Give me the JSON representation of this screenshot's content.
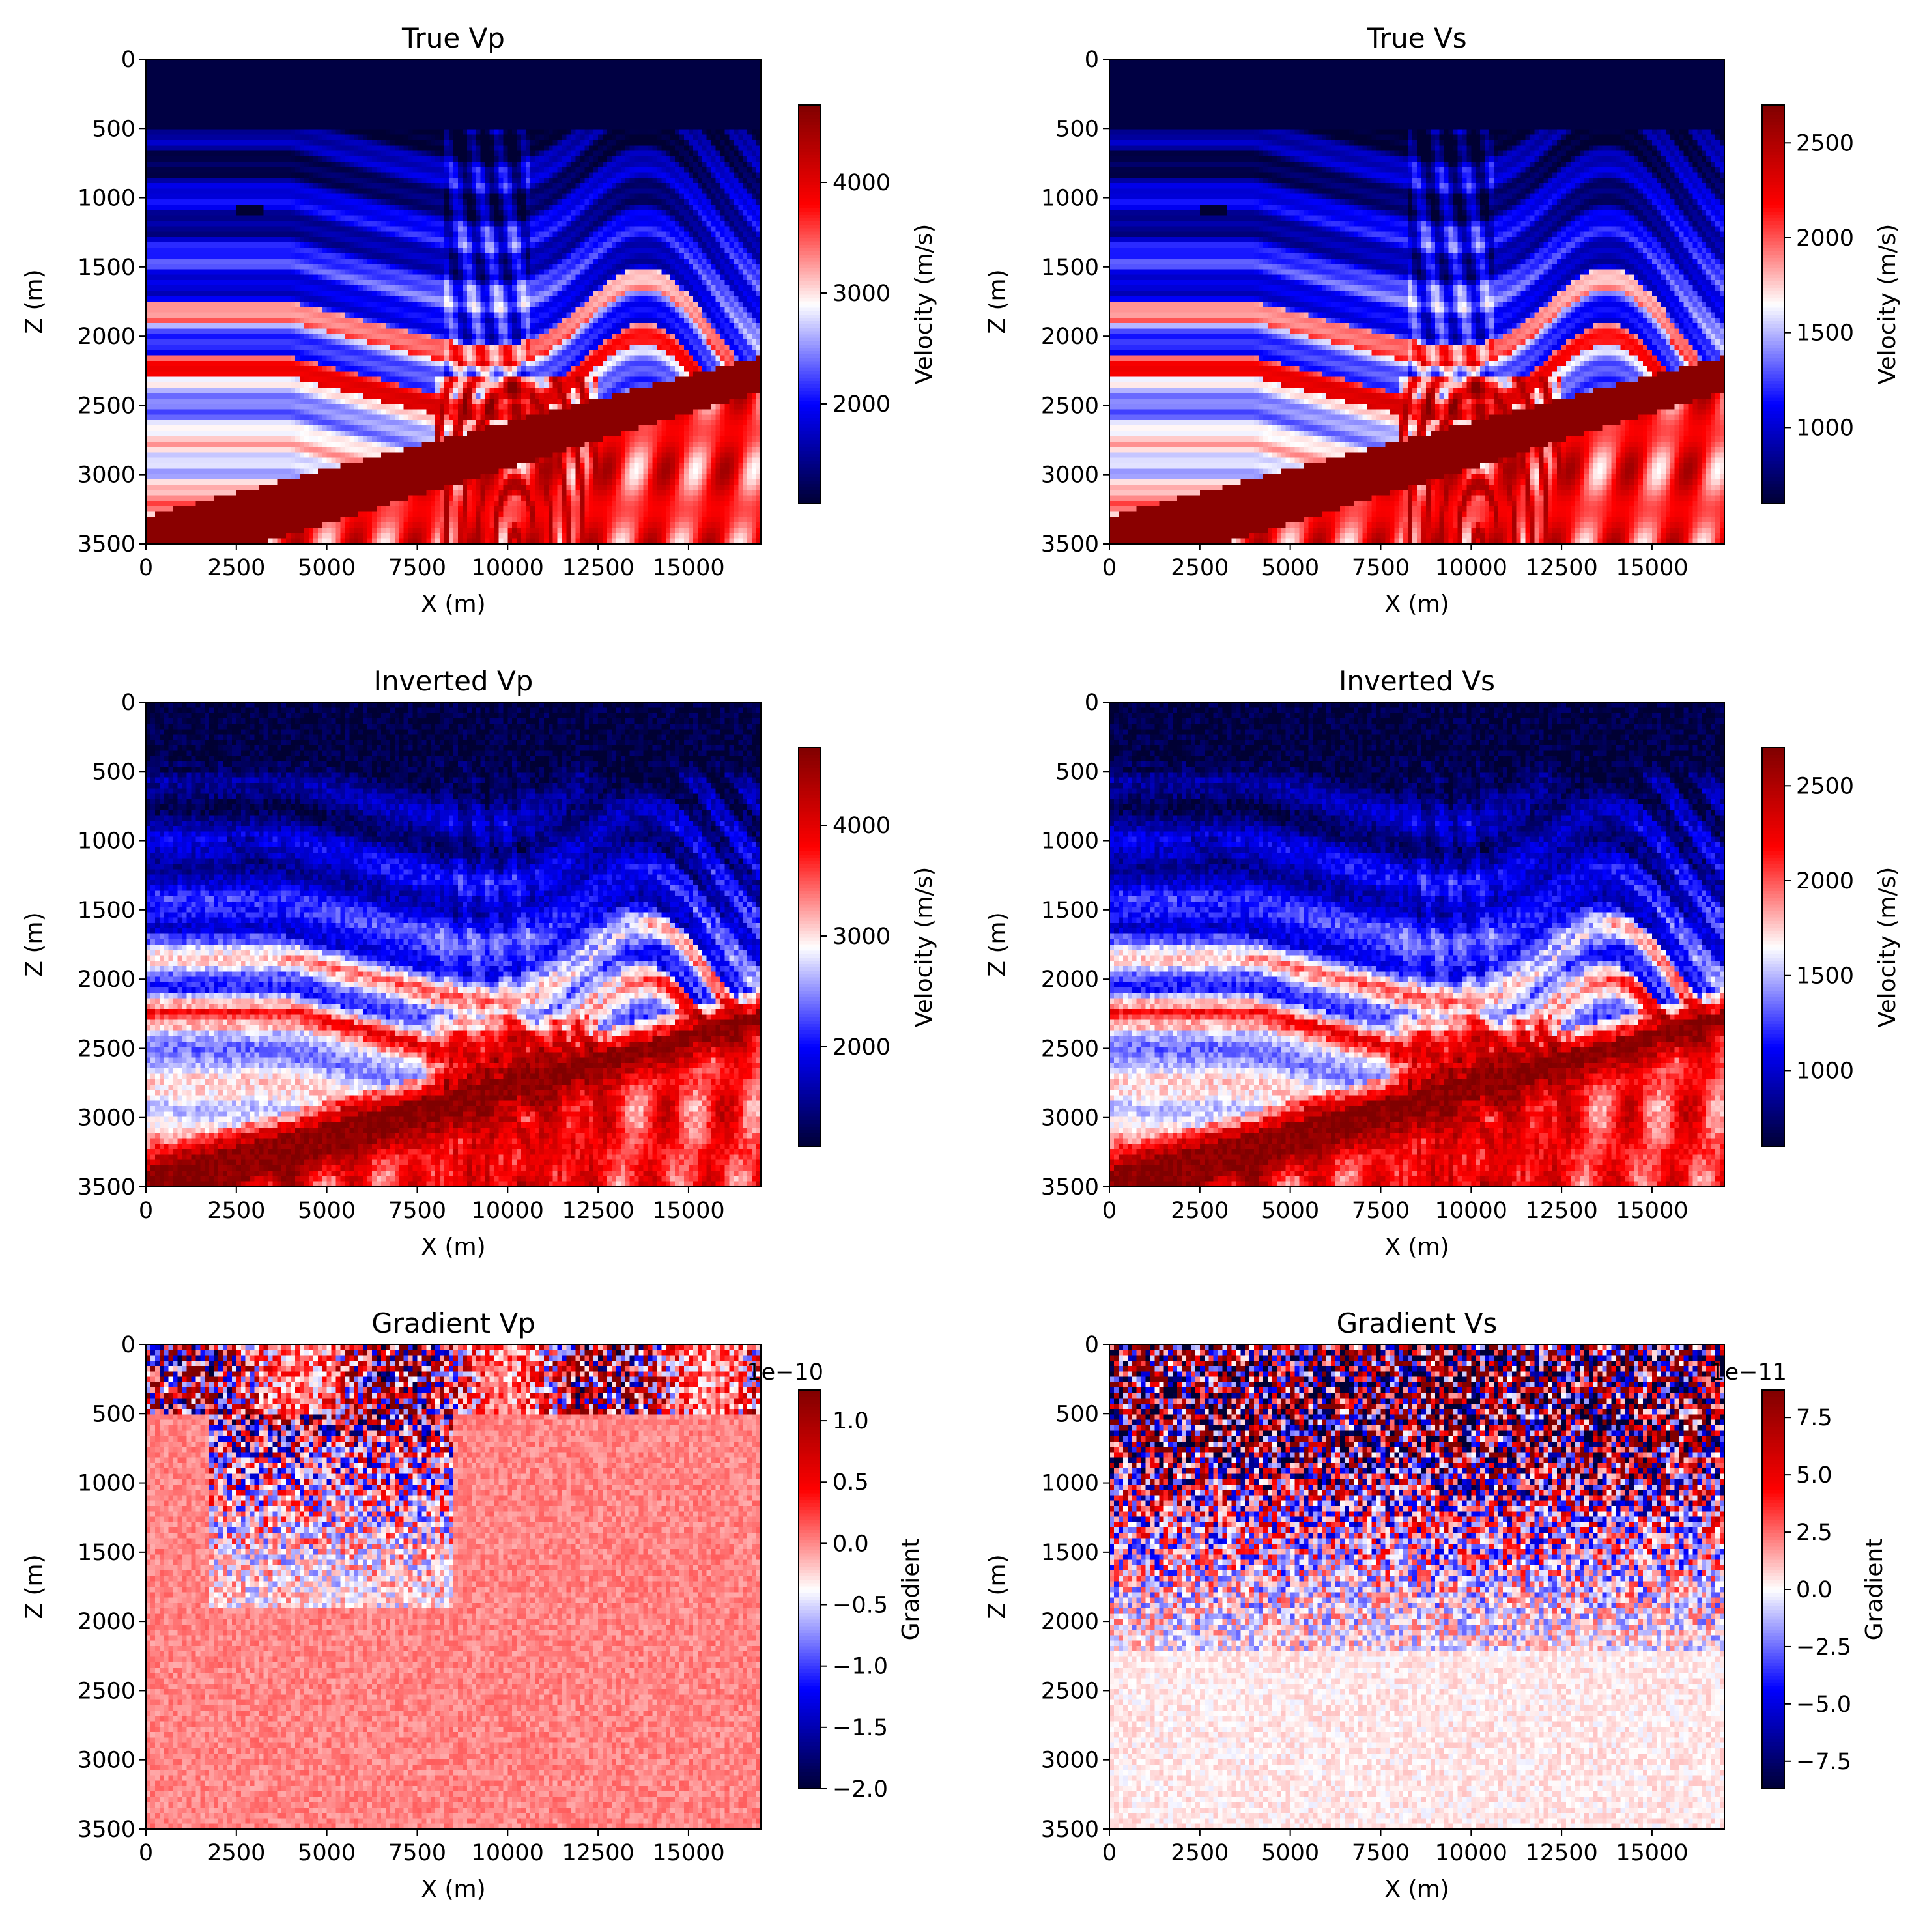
{
  "figure": {
    "rows": 3,
    "cols": 2
  },
  "colormap": {
    "name": "seismic",
    "stops": [
      "#000033",
      "#0000ff",
      "#ffffff",
      "#ff0000",
      "#800000"
    ]
  },
  "chart_data": [
    {
      "type": "heatmap",
      "title": "True Vp",
      "xlabel": "X (m)",
      "ylabel": "Z (m)",
      "xlim": [
        0,
        17000
      ],
      "ylim": [
        3500,
        0
      ],
      "xticks": [
        0,
        2500,
        5000,
        7500,
        10000,
        12500,
        15000
      ],
      "xtick_labels": [
        "0",
        "2500",
        "5000",
        "7500",
        "10000",
        "12500",
        "15000"
      ],
      "yticks": [
        0,
        500,
        1000,
        1500,
        2000,
        2500,
        3000,
        3500
      ],
      "ytick_labels": [
        "0",
        "500",
        "1000",
        "1500",
        "2000",
        "2500",
        "3000",
        "3500"
      ],
      "colorbar": {
        "label": "Velocity (m/s)",
        "range": [
          1100,
          4700
        ],
        "ticks": [
          2000,
          3000,
          4000
        ],
        "tick_labels": [
          "2000",
          "3000",
          "4000"
        ],
        "offset_text": ""
      },
      "field": "velocity"
    },
    {
      "type": "heatmap",
      "title": "True Vs",
      "xlabel": "X (m)",
      "ylabel": "Z (m)",
      "xlim": [
        0,
        17000
      ],
      "ylim": [
        3500,
        0
      ],
      "xticks": [
        0,
        2500,
        5000,
        7500,
        10000,
        12500,
        15000
      ],
      "xtick_labels": [
        "0",
        "2500",
        "5000",
        "7500",
        "10000",
        "12500",
        "15000"
      ],
      "yticks": [
        0,
        500,
        1000,
        1500,
        2000,
        2500,
        3000,
        3500
      ],
      "ytick_labels": [
        "0",
        "500",
        "1000",
        "1500",
        "2000",
        "2500",
        "3000",
        "3500"
      ],
      "colorbar": {
        "label": "Velocity (m/s)",
        "range": [
          600,
          2700
        ],
        "ticks": [
          1000,
          1500,
          2000,
          2500
        ],
        "tick_labels": [
          "1000",
          "1500",
          "2000",
          "2500"
        ],
        "offset_text": ""
      },
      "field": "velocity"
    },
    {
      "type": "heatmap",
      "title": "Inverted Vp",
      "xlabel": "X (m)",
      "ylabel": "Z (m)",
      "xlim": [
        0,
        17000
      ],
      "ylim": [
        3500,
        0
      ],
      "xticks": [
        0,
        2500,
        5000,
        7500,
        10000,
        12500,
        15000
      ],
      "xtick_labels": [
        "0",
        "2500",
        "5000",
        "7500",
        "10000",
        "12500",
        "15000"
      ],
      "yticks": [
        0,
        500,
        1000,
        1500,
        2000,
        2500,
        3000,
        3500
      ],
      "ytick_labels": [
        "0",
        "500",
        "1000",
        "1500",
        "2000",
        "2500",
        "3000",
        "3500"
      ],
      "colorbar": {
        "label": "Velocity (m/s)",
        "range": [
          1100,
          4700
        ],
        "ticks": [
          2000,
          3000,
          4000
        ],
        "tick_labels": [
          "2000",
          "3000",
          "4000"
        ],
        "offset_text": ""
      },
      "field": "velocity_inverted"
    },
    {
      "type": "heatmap",
      "title": "Inverted Vs",
      "xlabel": "X (m)",
      "ylabel": "Z (m)",
      "xlim": [
        0,
        17000
      ],
      "ylim": [
        3500,
        0
      ],
      "xticks": [
        0,
        2500,
        5000,
        7500,
        10000,
        12500,
        15000
      ],
      "xtick_labels": [
        "0",
        "2500",
        "5000",
        "7500",
        "10000",
        "12500",
        "15000"
      ],
      "yticks": [
        0,
        500,
        1000,
        1500,
        2000,
        2500,
        3000,
        3500
      ],
      "ytick_labels": [
        "0",
        "500",
        "1000",
        "1500",
        "2000",
        "2500",
        "3000",
        "3500"
      ],
      "colorbar": {
        "label": "Velocity (m/s)",
        "range": [
          600,
          2700
        ],
        "ticks": [
          1000,
          1500,
          2000,
          2500
        ],
        "tick_labels": [
          "1000",
          "1500",
          "2000",
          "2500"
        ],
        "offset_text": ""
      },
      "field": "velocity_inverted"
    },
    {
      "type": "heatmap",
      "title": "Gradient Vp",
      "xlabel": "X (m)",
      "ylabel": "Z (m)",
      "xlim": [
        0,
        17000
      ],
      "ylim": [
        3500,
        0
      ],
      "xticks": [
        0,
        2500,
        5000,
        7500,
        10000,
        12500,
        15000
      ],
      "xtick_labels": [
        "0",
        "2500",
        "5000",
        "7500",
        "10000",
        "12500",
        "15000"
      ],
      "yticks": [
        0,
        500,
        1000,
        1500,
        2000,
        2500,
        3000,
        3500
      ],
      "ytick_labels": [
        "0",
        "500",
        "1000",
        "1500",
        "2000",
        "2500",
        "3000",
        "3500"
      ],
      "colorbar": {
        "label": "Gradient",
        "range": [
          -2.0,
          1.25
        ],
        "ticks": [
          -2.0,
          -1.5,
          -1.0,
          -0.5,
          0.0,
          0.5,
          1.0
        ],
        "tick_labels": [
          "−2.0",
          "−1.5",
          "−1.0",
          "−0.5",
          "0.0",
          "0.5",
          "1.0"
        ],
        "offset_text": "1e−10"
      },
      "field": "gradient_vp"
    },
    {
      "type": "heatmap",
      "title": "Gradient Vs",
      "xlabel": "X (m)",
      "ylabel": "Z (m)",
      "xlim": [
        0,
        17000
      ],
      "ylim": [
        3500,
        0
      ],
      "xticks": [
        0,
        2500,
        5000,
        7500,
        10000,
        12500,
        15000
      ],
      "xtick_labels": [
        "0",
        "2500",
        "5000",
        "7500",
        "10000",
        "12500",
        "15000"
      ],
      "yticks": [
        0,
        500,
        1000,
        1500,
        2000,
        2500,
        3000,
        3500
      ],
      "ytick_labels": [
        "0",
        "500",
        "1000",
        "1500",
        "2000",
        "2500",
        "3000",
        "3500"
      ],
      "colorbar": {
        "label": "Gradient",
        "range": [
          -8.7,
          8.7
        ],
        "ticks": [
          -7.5,
          -5.0,
          -2.5,
          0.0,
          2.5,
          5.0,
          7.5
        ],
        "tick_labels": [
          "−7.5",
          "−5.0",
          "−2.5",
          "0.0",
          "2.5",
          "5.0",
          "7.5"
        ],
        "offset_text": "1e−11"
      },
      "field": "gradient_vs"
    }
  ]
}
